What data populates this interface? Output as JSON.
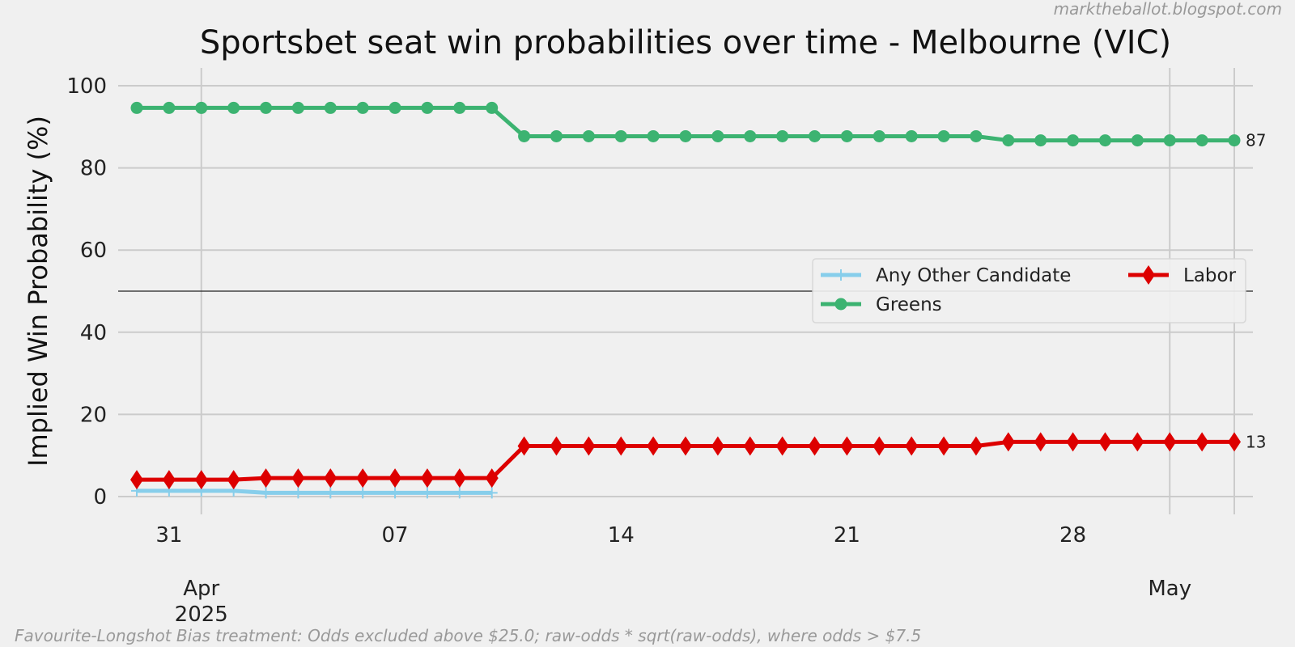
{
  "chart_data": {
    "type": "line",
    "title": "Sportsbet seat win probabilities over time - Melbourne (VIC)",
    "ylabel": "Implied Win Probability (%)",
    "xlabel": "",
    "ylim": [
      0,
      100
    ],
    "yticks": [
      0,
      20,
      40,
      60,
      80,
      100
    ],
    "xticks_minor": [
      {
        "date": "2025-03-31",
        "label": "31"
      },
      {
        "date": "2025-04-07",
        "label": "07"
      },
      {
        "date": "2025-04-14",
        "label": "14"
      },
      {
        "date": "2025-04-21",
        "label": "21"
      },
      {
        "date": "2025-04-28",
        "label": "28"
      }
    ],
    "xticks_major": [
      {
        "date": "2025-04-01",
        "label": "Apr",
        "sublabel": "2025"
      },
      {
        "date": "2025-05-01",
        "label": "May",
        "sublabel": ""
      }
    ],
    "xlim": [
      "2025-03-30",
      "2025-05-03"
    ],
    "reference_line": 50,
    "grid": true,
    "legend_placement": "center-right",
    "series": [
      {
        "name": "Any Other Candidate",
        "color": "#87ceeb",
        "marker": "plus",
        "x": [
          "2025-03-30",
          "2025-03-31",
          "2025-04-01",
          "2025-04-02",
          "2025-04-03",
          "2025-04-04",
          "2025-04-05",
          "2025-04-06",
          "2025-04-07",
          "2025-04-08",
          "2025-04-09",
          "2025-04-10"
        ],
        "values": [
          1.4,
          1.4,
          1.4,
          1.4,
          0.9,
          0.9,
          0.9,
          0.9,
          0.9,
          0.9,
          0.9,
          0.9
        ],
        "end_label": ""
      },
      {
        "name": "Greens",
        "color": "#3cb371",
        "marker": "circle",
        "x": [
          "2025-03-30",
          "2025-03-31",
          "2025-04-01",
          "2025-04-02",
          "2025-04-03",
          "2025-04-04",
          "2025-04-05",
          "2025-04-06",
          "2025-04-07",
          "2025-04-08",
          "2025-04-09",
          "2025-04-10",
          "2025-04-11",
          "2025-04-12",
          "2025-04-13",
          "2025-04-14",
          "2025-04-15",
          "2025-04-16",
          "2025-04-17",
          "2025-04-18",
          "2025-04-19",
          "2025-04-20",
          "2025-04-21",
          "2025-04-22",
          "2025-04-23",
          "2025-04-24",
          "2025-04-25",
          "2025-04-26",
          "2025-04-27",
          "2025-04-28",
          "2025-04-29",
          "2025-04-30",
          "2025-05-01",
          "2025-05-02",
          "2025-05-03"
        ],
        "values": [
          94.6,
          94.6,
          94.6,
          94.6,
          94.6,
          94.6,
          94.6,
          94.6,
          94.6,
          94.6,
          94.6,
          94.6,
          87.7,
          87.7,
          87.7,
          87.7,
          87.7,
          87.7,
          87.7,
          87.7,
          87.7,
          87.7,
          87.7,
          87.7,
          87.7,
          87.7,
          87.7,
          86.7,
          86.7,
          86.7,
          86.7,
          86.7,
          86.7,
          86.7,
          86.7
        ],
        "end_label": "87"
      },
      {
        "name": "Labor",
        "color": "#dd0000",
        "marker": "diamond",
        "x": [
          "2025-03-30",
          "2025-03-31",
          "2025-04-01",
          "2025-04-02",
          "2025-04-03",
          "2025-04-04",
          "2025-04-05",
          "2025-04-06",
          "2025-04-07",
          "2025-04-08",
          "2025-04-09",
          "2025-04-10",
          "2025-04-11",
          "2025-04-12",
          "2025-04-13",
          "2025-04-14",
          "2025-04-15",
          "2025-04-16",
          "2025-04-17",
          "2025-04-18",
          "2025-04-19",
          "2025-04-20",
          "2025-04-21",
          "2025-04-22",
          "2025-04-23",
          "2025-04-24",
          "2025-04-25",
          "2025-04-26",
          "2025-04-27",
          "2025-04-28",
          "2025-04-29",
          "2025-04-30",
          "2025-05-01",
          "2025-05-02",
          "2025-05-03"
        ],
        "values": [
          4.1,
          4.1,
          4.1,
          4.1,
          4.5,
          4.5,
          4.5,
          4.5,
          4.5,
          4.5,
          4.5,
          4.5,
          12.3,
          12.3,
          12.3,
          12.3,
          12.3,
          12.3,
          12.3,
          12.3,
          12.3,
          12.3,
          12.3,
          12.3,
          12.3,
          12.3,
          12.3,
          13.3,
          13.3,
          13.3,
          13.3,
          13.3,
          13.3,
          13.3,
          13.3
        ],
        "end_label": "13"
      }
    ]
  },
  "watermark": "marktheballot.blogspot.com",
  "footnote": "Favourite-Longshot Bias treatment: Odds excluded above $25.0; raw-odds * sqrt(raw-odds), where odds > $7.5",
  "legend": {
    "columns": [
      [
        "Any Other Candidate",
        "Greens"
      ],
      [
        "Labor"
      ]
    ]
  }
}
